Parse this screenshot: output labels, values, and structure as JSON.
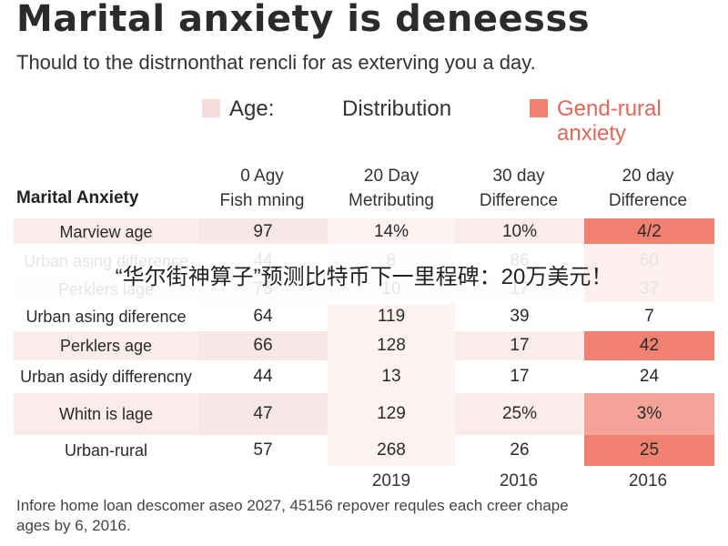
{
  "title": "Marital anxiety is deneesss",
  "subtitle": "Thould to the distrnonthat rencli for as exterving you a day.",
  "legend": [
    {
      "label": "Age:",
      "color": "#f6dcdc"
    },
    {
      "label": "Distribution",
      "color": ""
    },
    {
      "label": "Gend-rural\nanxiety",
      "color": "#f08070"
    }
  ],
  "table": {
    "row_header_title": "Marital Anxiety",
    "columns": [
      "0 Agy\nFish mning",
      "20 Day\nMetributing",
      "30 day\nDifference",
      "20 day\nDifference"
    ],
    "footer_years": [
      "2019",
      "2016",
      "2016"
    ],
    "rows": [
      {
        "label": "Marview age",
        "values": [
          "97",
          "14%",
          "10%",
          "4/2"
        ]
      },
      {
        "label": "Urban asing difference",
        "values": [
          "44",
          "8",
          "86",
          "60"
        ]
      },
      {
        "label": "Perklers lage",
        "values": [
          "75",
          "10",
          "17",
          "37"
        ]
      },
      {
        "label": "Urban asing diference",
        "values": [
          "64",
          "119",
          "39",
          "7"
        ]
      },
      {
        "label": "Perklers age",
        "values": [
          "66",
          "128",
          "17",
          "42"
        ]
      },
      {
        "label": "Urban asidy differencny",
        "values": [
          "44",
          "13",
          "17",
          "24"
        ]
      },
      {
        "label": "Whitn is lage",
        "values": [
          "47",
          "129",
          "25%",
          "3%"
        ]
      },
      {
        "label": "Urban-rural",
        "values": [
          "57",
          "268",
          "26",
          "25"
        ]
      }
    ]
  },
  "footnote": "Infore home loan descomer aseo 2027, 45156 repover requles each creer chape ages by 6, 2016.",
  "banner": "“华尔街神算子”预测比特币下一里程碑：20万美元！",
  "colors": {
    "row_shade": "#fbecec",
    "col1_shade": "#f9e6e6",
    "col2_shade": "#fdf3f3",
    "col4_shade": "#f08070",
    "col4_light": "#f4a398"
  },
  "chart_data": {
    "type": "table",
    "title": "Marital anxiety is deneesss",
    "subtitle": "Thould to the distrnonthat rencli for as exterving you a day.",
    "row_header": "Marital Anxiety",
    "columns": [
      "0 Agy Fish mning",
      "20 Day Metributing",
      "30 day Difference",
      "20 day Difference"
    ],
    "rows": [
      "Marview age",
      "Urban asing difference",
      "Perklers lage",
      "Urban asing diference",
      "Perklers age",
      "Urban asidy differencny",
      "Whitn is lage",
      "Urban-rural"
    ],
    "values": [
      [
        "97",
        "14%",
        "10%",
        "4/2"
      ],
      [
        "44",
        "8",
        "86",
        "60"
      ],
      [
        "75",
        "10",
        "17",
        "37"
      ],
      [
        "64",
        "119",
        "39",
        "7"
      ],
      [
        "66",
        "128",
        "17",
        "42"
      ],
      [
        "44",
        "13",
        "17",
        "24"
      ],
      [
        "47",
        "129",
        "25%",
        "3%"
      ],
      [
        "57",
        "268",
        "26",
        "25"
      ]
    ],
    "legend": [
      "Age:",
      "Distribution",
      "Gend-rural anxiety"
    ],
    "footer_years": [
      "2019",
      "2016",
      "2016"
    ]
  }
}
